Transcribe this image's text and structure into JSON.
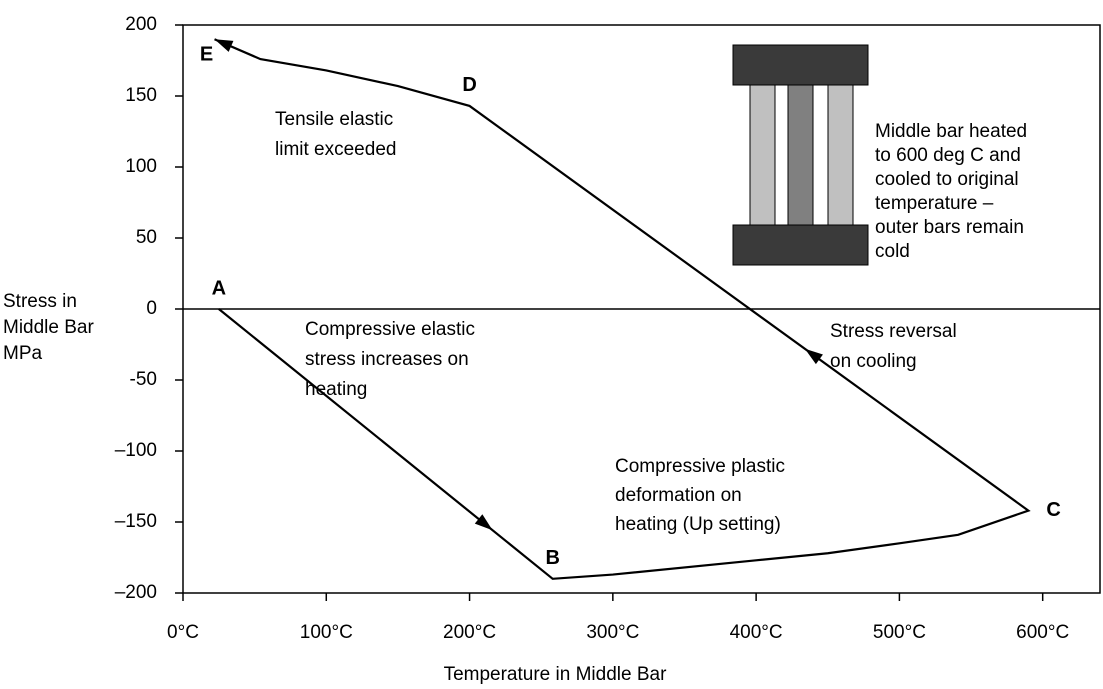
{
  "chart_data": {
    "type": "line",
    "x_label": "Temperature in Middle Bar",
    "y_label": [
      "Stress in",
      "Middle Bar",
      "MPa"
    ],
    "x": [
      25,
      258,
      300,
      400,
      450,
      500,
      541,
      590,
      200,
      150,
      100,
      54,
      22
    ],
    "series": [
      {
        "color": "#000000",
        "values": [
          0,
          -190,
          -187,
          -177,
          -172,
          -165,
          -159,
          -142,
          143,
          157,
          168,
          176,
          190
        ]
      }
    ],
    "point_labels": [
      "A",
      "B",
      null,
      null,
      null,
      null,
      null,
      "C",
      "D",
      null,
      null,
      null,
      "E"
    ],
    "xlim": [
      0,
      640
    ],
    "ylim": [
      -200,
      200
    ],
    "xticks": [
      {
        "value": 0,
        "label": "0°C"
      },
      {
        "value": 100,
        "label": "100°C"
      },
      {
        "value": 200,
        "label": "200°C"
      },
      {
        "value": 300,
        "label": "300°C"
      },
      {
        "value": 400,
        "label": "400°C"
      },
      {
        "value": 500,
        "label": "500°C"
      },
      {
        "value": 600,
        "label": "600°C"
      }
    ],
    "yticks": [
      {
        "value": -200,
        "label": "–200"
      },
      {
        "value": -150,
        "label": "–150"
      },
      {
        "value": -100,
        "label": "–100"
      },
      {
        "value": -50,
        "label": "-50"
      },
      0,
      50,
      100,
      150,
      200
    ],
    "grid": false,
    "annotations": [
      {
        "lines": [
          "Tensile elastic",
          "limit exceeded"
        ]
      },
      {
        "lines": [
          "Compressive elastic",
          "stress increases on",
          "heating"
        ]
      },
      {
        "lines": [
          "Compressive plastic",
          "deformation on",
          "heating (Up setting)"
        ]
      },
      {
        "lines": [
          "Stress reversal",
          "on cooling"
        ]
      },
      {
        "lines": [
          "Middle bar heated",
          "to 600 deg C and",
          "cooled to original",
          "temperature –",
          "outer bars remain",
          "cold"
        ]
      }
    ]
  }
}
